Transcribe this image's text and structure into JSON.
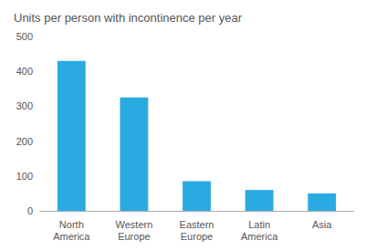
{
  "chart_data": {
    "type": "bar",
    "title": "Units per person with incontinence per year",
    "categories": [
      "North\nAmerica",
      "Western\nEurope",
      "Eastern\nEurope",
      "Latin\nAmerica",
      "Asia"
    ],
    "values": [
      430,
      325,
      85,
      60,
      50
    ],
    "color": "#29ABE2",
    "ylim": [
      0,
      500
    ],
    "yticks": [
      0,
      100,
      200,
      300,
      400,
      500
    ],
    "grid": false
  }
}
